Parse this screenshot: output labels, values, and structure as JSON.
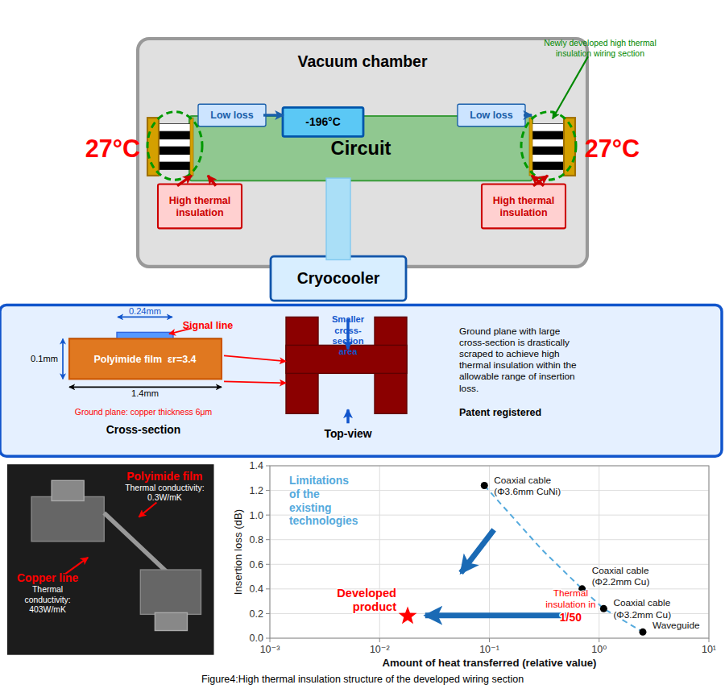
{
  "chart_data": {
    "type": "scatter",
    "title": "Figure4:High thermal insulation structure of the developed wiring section",
    "x_label": "Amount of heat transferred (relative value)",
    "y_label": "Insertion loss (dB)",
    "log": "x",
    "grid": true,
    "xlim": [
      0.001,
      10
    ],
    "ylim": [
      0,
      1.4
    ],
    "xticks": [
      {
        "value": 0.001,
        "label": "10⁻³"
      },
      {
        "value": 0.01,
        "label": "10⁻²"
      },
      {
        "value": 0.1,
        "label": "10⁻¹"
      },
      {
        "value": 1,
        "label": "10⁰"
      },
      {
        "value": 10,
        "label": "10¹"
      }
    ],
    "yticks": [
      {
        "value": 0,
        "label": "0.0"
      },
      0.2,
      0.4,
      0.6,
      0.8,
      {
        "value": 1.0,
        "label": "1.0"
      },
      1.2,
      1.4
    ],
    "series": [
      {
        "type": "line",
        "line_style": "dashed",
        "color": "#55aadd",
        "x": [
          0.09,
          0.3,
          0.7,
          1.1,
          2.5
        ],
        "values": [
          1.24,
          0.72,
          0.4,
          0.24,
          0.05
        ]
      },
      {
        "type": "scatter",
        "marker": "circle",
        "color": "black",
        "x": [
          0.09,
          0.7,
          1.1,
          2.5
        ],
        "values": [
          1.24,
          0.4,
          0.24,
          0.05
        ],
        "labels": [
          "Coaxial cable\n(Φ3.6mm CuNi)",
          "Coaxial cable\n(Φ2.2mm Cu)",
          "Coaxial cable\n(Φ3.2mm Cu)",
          "Waveguide"
        ]
      },
      {
        "type": "scatter",
        "marker": "star",
        "color": "red",
        "x": [
          0.018
        ],
        "values": [
          0.18
        ],
        "labels": [
          "Developed\nproduct"
        ]
      }
    ],
    "annotations": [
      {
        "text": "Limitations\nof the\nexisting\ntechnologies",
        "x": 0.0015,
        "y": 1.32,
        "color": "#55aadd",
        "arrow": {
          "from": [
            0.11,
            0.88
          ],
          "to": [
            0.055,
            0.53
          ],
          "color": "#1a6ab5"
        }
      },
      {
        "text": "Thermal\ninsulation in",
        "x": 0.55,
        "y": 0.12,
        "color": "red",
        "arrow": {
          "from": [
            0.5,
            0.185
          ],
          "to": [
            0.026,
            0.185
          ],
          "color": "#1a6ab5"
        }
      },
      {
        "text": "1/50",
        "x": 0.55,
        "y": 0.12,
        "color": "red"
      }
    ]
  },
  "diagram": {
    "vacuum_chamber_title": "Vacuum chamber",
    "circuit_label": "Circuit",
    "temp_label": "-196°C",
    "low_loss": "Low loss",
    "high_insulation": "High thermal\ninsulation",
    "temp27": "27°C",
    "cryocooler_label": "Cryocooler",
    "new_label": "Newly developed high thermal\ninsulation wiring section",
    "signal_line_label": "Signal line",
    "polyimide_label": "Polyimide film  εr=3.4",
    "ground_label": "Ground plane: copper thickness 6μm",
    "dim1": "0.1mm",
    "dim2": "0.24mm",
    "dim3": "1.4mm",
    "smaller_label": "Smaller\ncross-\nsection\narea",
    "desc_text": "Ground plane with large\ncross-section is drastically\nscraped to achieve high\nthermal insulation within the\nallowable range of insertion\nloss.",
    "patent_text": "Patent registered",
    "cross_section_label": "Cross-section",
    "top_view_label": "Top-view",
    "poly_film_label": "Polyimide film",
    "poly_film_sub": "Thermal conductivity:\n0.3W/mK",
    "copper_label": "Copper line",
    "copper_sub": "Thermal\nconductivity:\n403W/mK"
  }
}
